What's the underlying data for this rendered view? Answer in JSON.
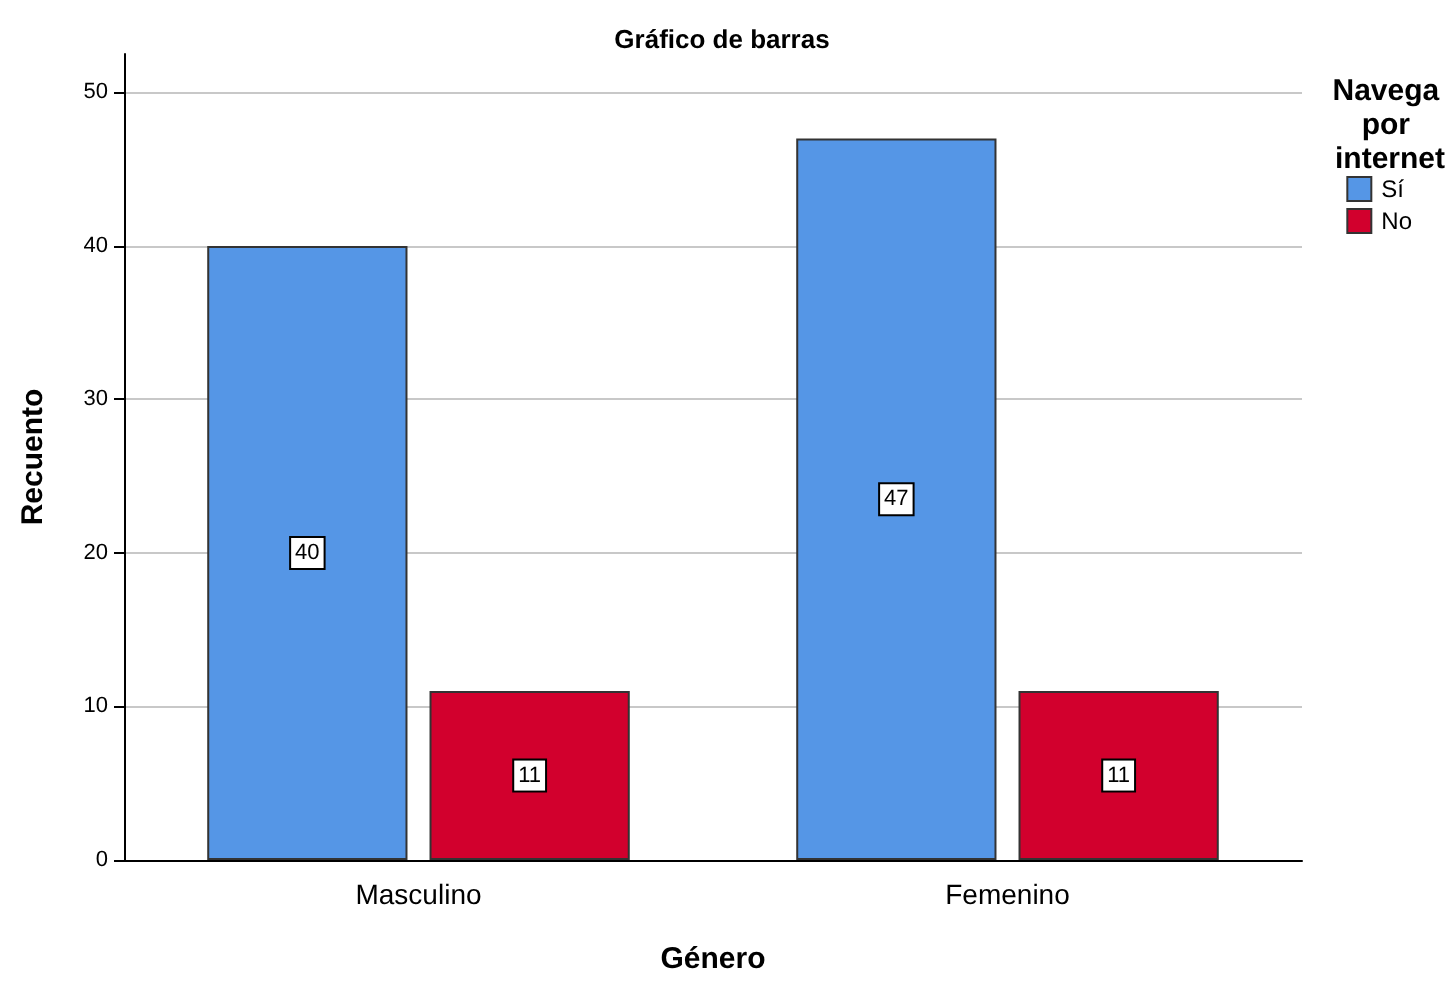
{
  "chart_data": {
    "type": "bar",
    "title": "Gráfico de barras",
    "xlabel": "Género",
    "ylabel": "Recuento",
    "legend_title": "Navega por internet",
    "categories": [
      "Masculino",
      "Femenino"
    ],
    "series": [
      {
        "name": "Sí",
        "color": "#5596e6",
        "values": [
          40,
          47
        ]
      },
      {
        "name": "No",
        "color": "#d2002d",
        "values": [
          11,
          11
        ]
      }
    ],
    "ylim": [
      0,
      52.5
    ],
    "yticks": [
      0,
      10,
      20,
      30,
      40,
      50
    ],
    "grid": "y",
    "legend": "top right",
    "data_labels": true
  }
}
